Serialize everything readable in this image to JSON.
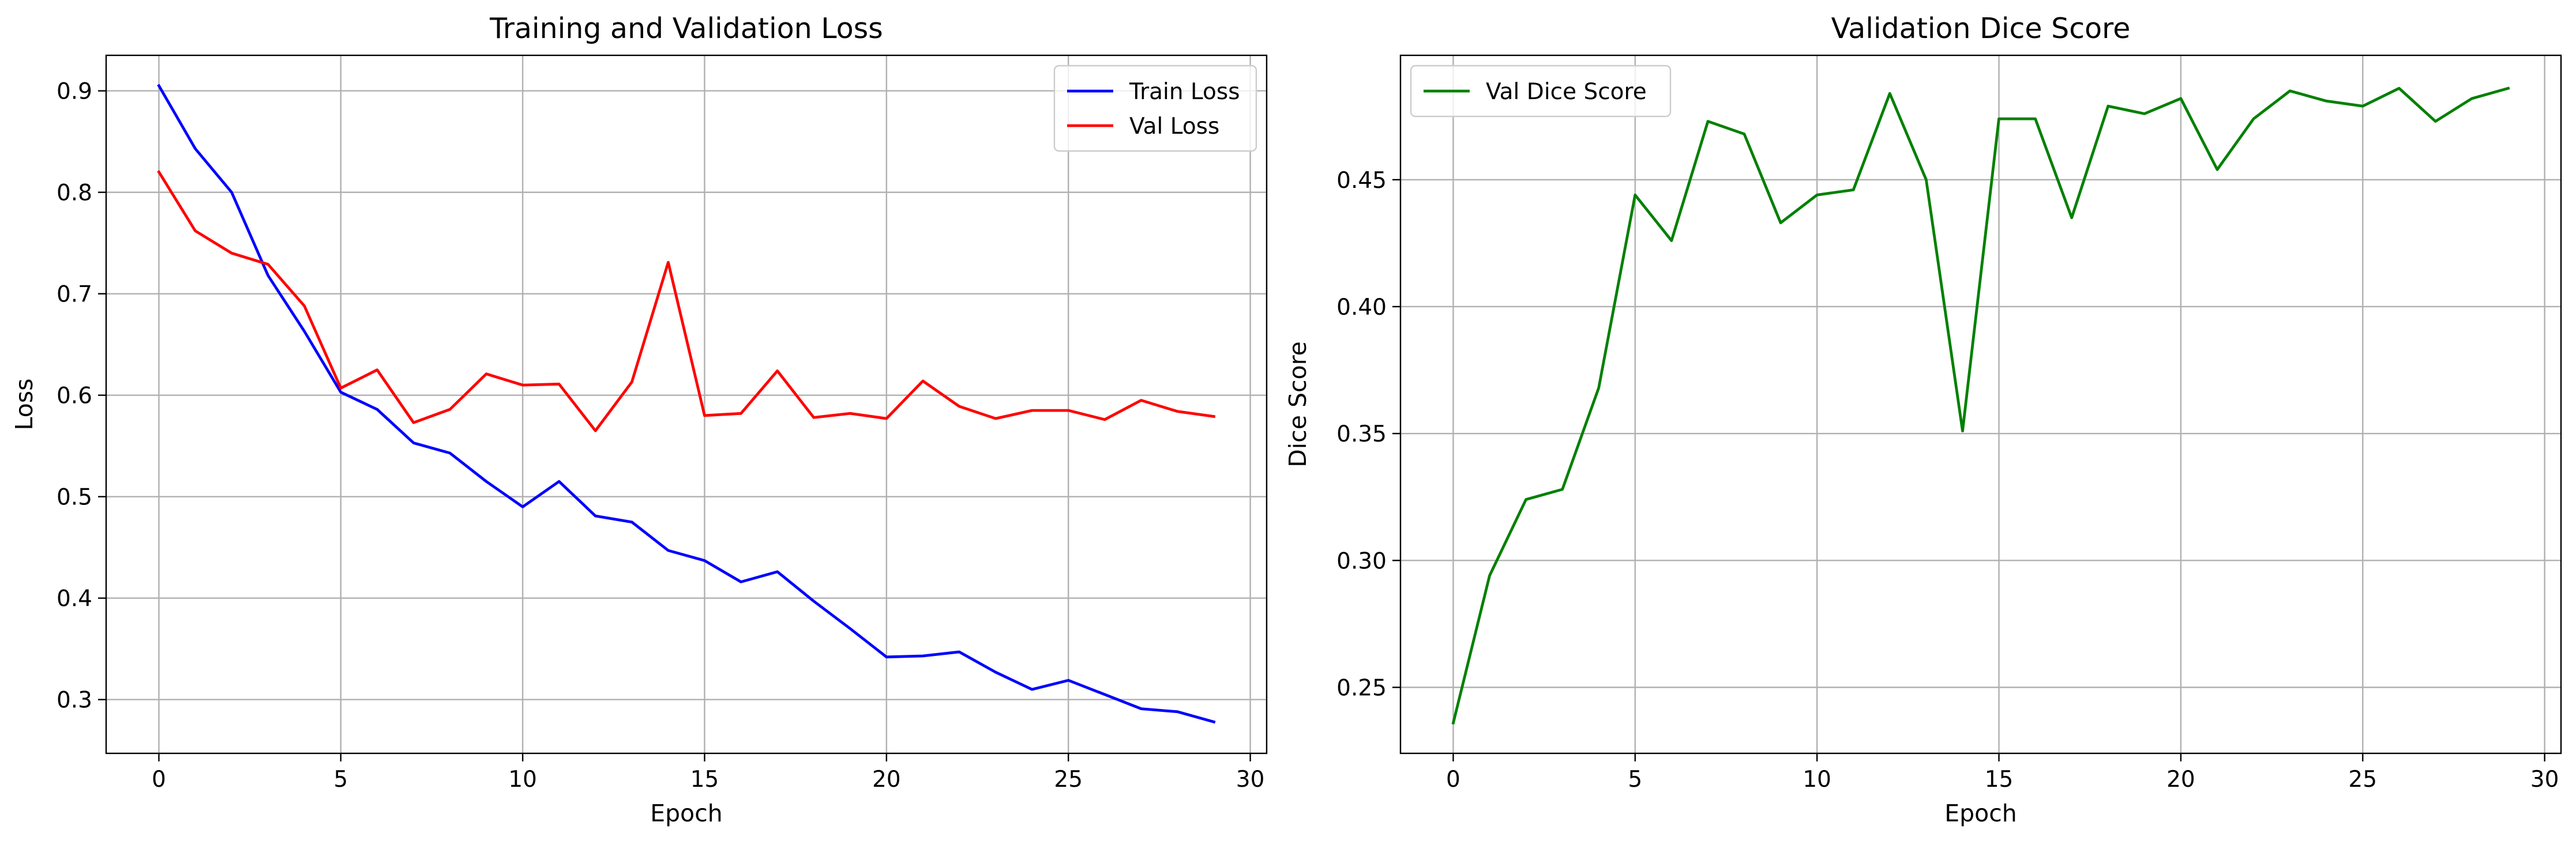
{
  "chart_data": [
    {
      "type": "line",
      "title": "Training and Validation Loss",
      "xlabel": "Epoch",
      "ylabel": "Loss",
      "xlim": [
        -1.45,
        30.45
      ],
      "ylim": [
        0.247,
        0.935
      ],
      "xticks": [
        0,
        5,
        10,
        15,
        20,
        25,
        30
      ],
      "yticks": [
        0.3,
        0.4,
        0.5,
        0.6,
        0.7,
        0.8,
        0.9
      ],
      "grid": true,
      "legend": "top-right",
      "x": [
        0,
        1,
        2,
        3,
        4,
        5,
        6,
        7,
        8,
        9,
        10,
        11,
        12,
        13,
        14,
        15,
        16,
        17,
        18,
        19,
        20,
        21,
        22,
        23,
        24,
        25,
        26,
        27,
        28,
        29
      ],
      "series": [
        {
          "name": "Train Loss",
          "color": "#0000ff",
          "values": [
            0.905,
            0.843,
            0.8,
            0.718,
            0.663,
            0.603,
            0.586,
            0.553,
            0.543,
            0.515,
            0.49,
            0.515,
            0.481,
            0.475,
            0.447,
            0.437,
            0.416,
            0.426,
            0.397,
            0.37,
            0.342,
            0.343,
            0.347,
            0.327,
            0.31,
            0.319,
            0.305,
            0.291,
            0.288,
            0.278
          ]
        },
        {
          "name": "Val Loss",
          "color": "#ff0000",
          "values": [
            0.82,
            0.762,
            0.74,
            0.729,
            0.688,
            0.607,
            0.625,
            0.573,
            0.586,
            0.621,
            0.61,
            0.611,
            0.565,
            0.613,
            0.731,
            0.58,
            0.582,
            0.624,
            0.578,
            0.582,
            0.577,
            0.614,
            0.589,
            0.577,
            0.585,
            0.585,
            0.576,
            0.595,
            0.584,
            0.579
          ]
        }
      ]
    },
    {
      "type": "line",
      "title": "Validation Dice Score",
      "xlabel": "Epoch",
      "ylabel": "Dice Score",
      "xlim": [
        -1.45,
        30.45
      ],
      "ylim": [
        0.224,
        0.499
      ],
      "xticks": [
        0,
        5,
        10,
        15,
        20,
        25,
        30
      ],
      "yticks": [
        0.25,
        0.3,
        0.35,
        0.4,
        0.45
      ],
      "grid": true,
      "legend": "top-left",
      "x": [
        0,
        1,
        2,
        3,
        4,
        5,
        6,
        7,
        8,
        9,
        10,
        11,
        12,
        13,
        14,
        15,
        16,
        17,
        18,
        19,
        20,
        21,
        22,
        23,
        24,
        25,
        26,
        27,
        28,
        29
      ],
      "series": [
        {
          "name": "Val Dice Score",
          "color": "#008000",
          "values": [
            0.236,
            0.294,
            0.324,
            0.328,
            0.368,
            0.444,
            0.426,
            0.473,
            0.468,
            0.433,
            0.444,
            0.446,
            0.484,
            0.45,
            0.351,
            0.474,
            0.474,
            0.435,
            0.479,
            0.476,
            0.482,
            0.454,
            0.474,
            0.485,
            0.481,
            0.479,
            0.486,
            0.473,
            0.482,
            0.486
          ]
        }
      ]
    }
  ]
}
